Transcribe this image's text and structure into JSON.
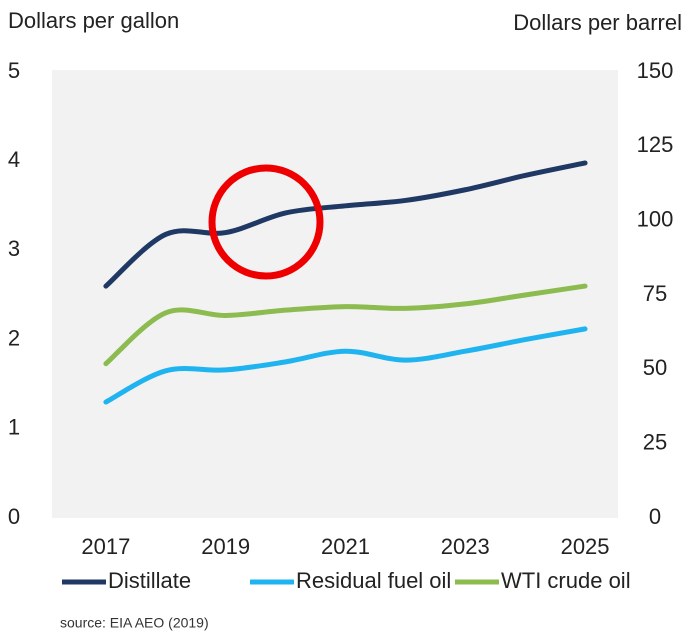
{
  "chart_data": {
    "type": "line",
    "y_label": "Dollars per gallon",
    "y2_label": "Dollars per barrel",
    "source": "source: EIA AEO (2019)",
    "x": [
      2017,
      2018,
      2019,
      2020,
      2021,
      2022,
      2023,
      2024,
      2025
    ],
    "xlim": [
      2016.1,
      2025.55
    ],
    "xticks": [
      2017,
      2019,
      2021,
      2023,
      2025
    ],
    "ylim": [
      0,
      5
    ],
    "yticks": [
      0,
      1,
      2,
      3,
      4,
      5
    ],
    "y2lim": [
      0,
      150
    ],
    "y2ticks": [
      0,
      25,
      50,
      75,
      100,
      125,
      150
    ],
    "legend": "bottom",
    "series": [
      {
        "name": "Distillate",
        "color": "#1f3864",
        "values": [
          2.6,
          3.18,
          3.2,
          3.42,
          3.5,
          3.56,
          3.68,
          3.84,
          3.98
        ]
      },
      {
        "name": "Residual fuel oil",
        "color": "#1fb4f0",
        "values": [
          1.3,
          1.65,
          1.66,
          1.75,
          1.87,
          1.77,
          1.87,
          2.0,
          2.12
        ]
      },
      {
        "name": "WTI crude oil",
        "color": "#8cbb4f",
        "values": [
          1.73,
          2.3,
          2.27,
          2.33,
          2.37,
          2.35,
          2.4,
          2.5,
          2.6
        ]
      }
    ]
  }
}
